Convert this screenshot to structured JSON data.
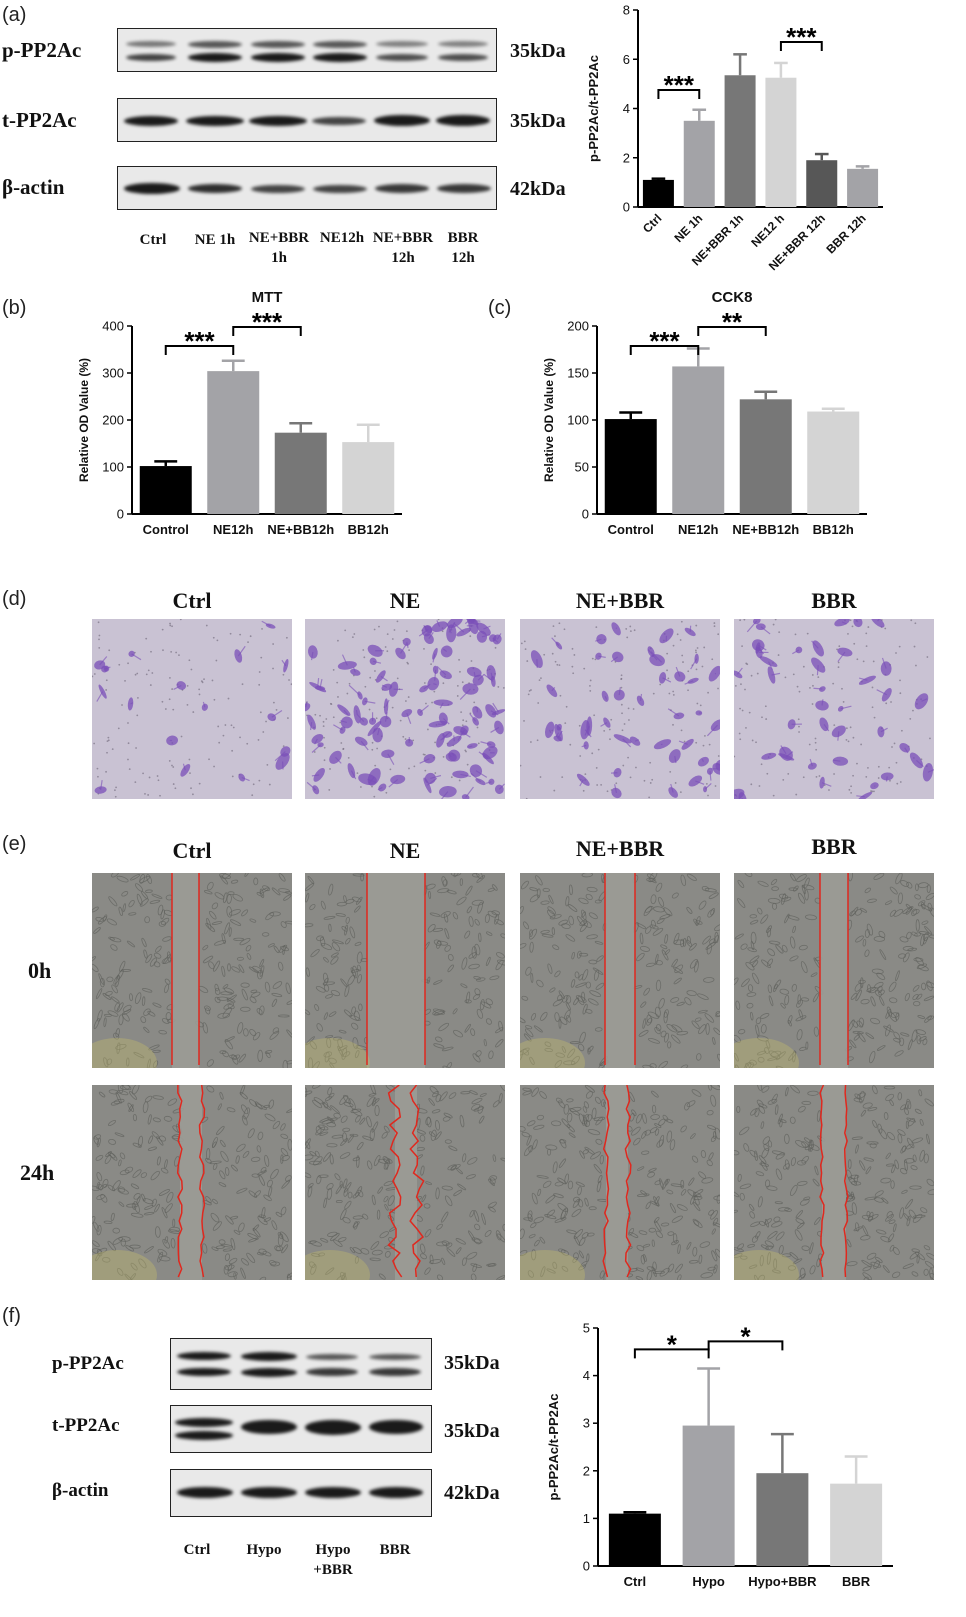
{
  "panels": {
    "a": {
      "letter": "(a)",
      "blot_rows": [
        {
          "label": "p-PP2Ac",
          "kda": "35kDa"
        },
        {
          "label": "t-PP2Ac",
          "kda": "35kDa"
        },
        {
          "label": "β-actin",
          "kda": "42kDa"
        }
      ],
      "lanes": [
        "Ctrl",
        "NE 1h",
        "NE+BBR\n1h",
        "NE12h",
        "NE+BBR\n12h",
        "BBR\n12h"
      ]
    },
    "b": {
      "letter": "(b)"
    },
    "c": {
      "letter": "(c)"
    },
    "d": {
      "letter": "(d)",
      "columns": [
        "Ctrl",
        "NE",
        "NE+BBR",
        "BBR"
      ]
    },
    "e": {
      "letter": "(e)",
      "columns": [
        "Ctrl",
        "NE",
        "NE+BBR",
        "BBR"
      ],
      "rows": [
        "0h",
        "24h"
      ]
    },
    "f": {
      "letter": "(f)",
      "blot_rows": [
        {
          "label": "p-PP2Ac",
          "kda": "35kDa"
        },
        {
          "label": "t-PP2Ac",
          "kda": "35kDa"
        },
        {
          "label": "β-actin",
          "kda": "42kDa"
        }
      ],
      "lanes": [
        "Ctrl",
        "Hypo",
        "Hypo\n+BBR",
        "BBR"
      ]
    }
  },
  "chart_data": [
    {
      "id": "a",
      "type": "bar",
      "title": "",
      "xlabel": "",
      "ylabel": "p-PP2Ac/t-PP2Ac",
      "categories": [
        "Ctrl",
        "NE 1h",
        "NE+BBR 1h",
        "NE12 h",
        "NE+BBR 12h",
        "BBR 12h"
      ],
      "values": [
        1.1,
        3.5,
        5.35,
        5.25,
        1.9,
        1.55
      ],
      "errors": [
        0.05,
        0.45,
        0.85,
        0.6,
        0.25,
        0.1
      ],
      "colors": [
        "#000000",
        "#a3a3a7",
        "#777777",
        "#d4d4d4",
        "#575757",
        "#a3a3a7"
      ],
      "ylim": [
        0,
        8
      ],
      "yticks": [
        "0",
        "2",
        "4",
        "6",
        "8"
      ],
      "significance": [
        {
          "from": 0,
          "to": 1,
          "label": "***"
        },
        {
          "from": 3,
          "to": 4,
          "label": "***"
        }
      ]
    },
    {
      "id": "b",
      "type": "bar",
      "title": "MTT",
      "xlabel": "",
      "ylabel": "Relative OD Value (%)",
      "categories": [
        "Control",
        "NE12h",
        "NE+BB12h",
        "BB12h"
      ],
      "values": [
        102,
        304,
        173,
        153
      ],
      "errors": [
        10,
        22,
        20,
        37
      ],
      "colors": [
        "#000000",
        "#a3a3a7",
        "#777777",
        "#d4d4d4"
      ],
      "ylim": [
        0,
        400
      ],
      "yticks": [
        "0",
        "100",
        "200",
        "300",
        "400"
      ],
      "significance": [
        {
          "from": 0,
          "to": 1,
          "label": "***"
        },
        {
          "from": 1,
          "to": 2,
          "label": "***"
        }
      ]
    },
    {
      "id": "c",
      "type": "bar",
      "title": "CCK8",
      "xlabel": "",
      "ylabel": "Relative OD Value (%)",
      "categories": [
        "Control",
        "NE12h",
        "NE+BB12h",
        "BB12h"
      ],
      "values": [
        101,
        157,
        122,
        109
      ],
      "errors": [
        7,
        19,
        8,
        3
      ],
      "colors": [
        "#000000",
        "#a3a3a7",
        "#777777",
        "#d4d4d4"
      ],
      "ylim": [
        0,
        200
      ],
      "yticks": [
        "0",
        "50",
        "100",
        "150",
        "200"
      ],
      "significance": [
        {
          "from": 0,
          "to": 1,
          "label": "***"
        },
        {
          "from": 1,
          "to": 2,
          "label": "**"
        }
      ]
    },
    {
      "id": "f",
      "type": "bar",
      "title": "",
      "xlabel": "",
      "ylabel": "p-PP2Ac/t-PP2Ac",
      "categories": [
        "Ctrl",
        "Hypo",
        "Hypo+BBR",
        "BBR"
      ],
      "values": [
        1.1,
        2.95,
        1.95,
        1.73
      ],
      "errors": [
        0.03,
        1.2,
        0.82,
        0.57
      ],
      "colors": [
        "#000000",
        "#a3a3a7",
        "#777777",
        "#d4d4d4"
      ],
      "ylim": [
        0,
        5
      ],
      "yticks": [
        "0",
        "1",
        "2",
        "3",
        "4",
        "5"
      ],
      "significance": [
        {
          "from": 0,
          "to": 1,
          "label": "*"
        },
        {
          "from": 1,
          "to": 2,
          "label": "*"
        }
      ]
    }
  ]
}
